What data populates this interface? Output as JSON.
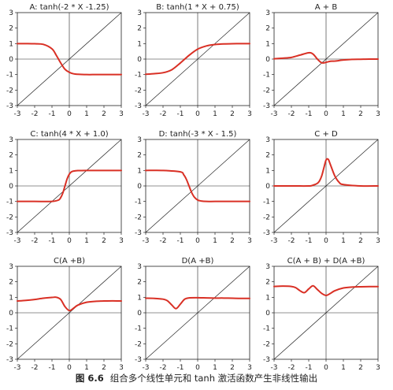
{
  "caption": {
    "number": "图 6.6",
    "text": "组合多个线性单元和 tanh 激活函数产生非线性输出"
  },
  "colors": {
    "curve": "#d93025",
    "line": "#222222"
  },
  "chart_data": [
    {
      "type": "line",
      "title": "A: tanh(-2 * X -1.25)",
      "xlim": [
        -3,
        3
      ],
      "ylim": [
        -3,
        3
      ],
      "xticks": [
        -3,
        -2,
        -1,
        0,
        1,
        2,
        3
      ],
      "yticks": [
        -3,
        -2,
        -1,
        0,
        1,
        2,
        3
      ],
      "reference_line": "y = x",
      "series": [
        {
          "x": [
            -3,
            -2.5,
            -2,
            -1.5,
            -1,
            -0.75,
            -0.5,
            -0.25,
            0,
            0.25,
            0.5,
            1,
            1.5,
            2,
            2.5,
            3
          ],
          "y": [
            1,
            1,
            0.99,
            0.95,
            0.66,
            0.24,
            -0.24,
            -0.66,
            -0.85,
            -0.95,
            -0.98,
            -1,
            -1,
            -1,
            -1,
            -1
          ]
        }
      ]
    },
    {
      "type": "line",
      "title": "B: tanh(1 * X + 0.75)",
      "xlim": [
        -3,
        3
      ],
      "ylim": [
        -3,
        3
      ],
      "xticks": [
        -3,
        -2,
        -1,
        0,
        1,
        2,
        3
      ],
      "yticks": [
        -3,
        -2,
        -1,
        0,
        1,
        2,
        3
      ],
      "reference_line": "y = x",
      "series": [
        {
          "x": [
            -3,
            -2.5,
            -2,
            -1.5,
            -1,
            -0.5,
            0,
            0.5,
            1,
            1.5,
            2,
            2.5,
            3
          ],
          "y": [
            -0.98,
            -0.94,
            -0.88,
            -0.69,
            -0.25,
            0.24,
            0.64,
            0.85,
            0.94,
            0.98,
            0.99,
            1,
            1
          ]
        }
      ]
    },
    {
      "type": "line",
      "title": "A + B",
      "xlim": [
        -3,
        3
      ],
      "ylim": [
        -3,
        3
      ],
      "xticks": [
        -3,
        -2,
        -1,
        0,
        1,
        2,
        3
      ],
      "yticks": [
        -3,
        -2,
        -1,
        0,
        1,
        2,
        3
      ],
      "reference_line": "y = x",
      "series": [
        {
          "x": [
            -3,
            -2.5,
            -2,
            -1.5,
            -1,
            -0.75,
            -0.5,
            -0.25,
            0,
            0.25,
            0.5,
            1,
            1.5,
            2,
            2.5,
            3
          ],
          "y": [
            0.02,
            0.06,
            0.11,
            0.26,
            0.41,
            0.32,
            0,
            -0.24,
            -0.21,
            -0.14,
            -0.13,
            -0.06,
            -0.02,
            -0.01,
            0,
            0
          ]
        }
      ]
    },
    {
      "type": "line",
      "title": "C: tanh(4 * X + 1.0)",
      "xlim": [
        -3,
        3
      ],
      "ylim": [
        -3,
        3
      ],
      "xticks": [
        -3,
        -2,
        -1,
        0,
        1,
        2,
        3
      ],
      "yticks": [
        -3,
        -2,
        -1,
        0,
        1,
        2,
        3
      ],
      "reference_line": "y = x",
      "series": [
        {
          "x": [
            -3,
            -2,
            -1,
            -0.625,
            -0.5,
            -0.375,
            -0.25,
            -0.125,
            0,
            0.125,
            0.25,
            0.5,
            1,
            2,
            3
          ],
          "y": [
            -1,
            -1,
            -1,
            -0.91,
            -0.76,
            -0.46,
            0,
            0.46,
            0.76,
            0.91,
            0.96,
            0.99,
            1,
            1,
            1
          ]
        }
      ]
    },
    {
      "type": "line",
      "title": "D: tanh(-3 * X - 1.5)",
      "xlim": [
        -3,
        3
      ],
      "ylim": [
        -3,
        3
      ],
      "xticks": [
        -3,
        -2,
        -1,
        0,
        1,
        2,
        3
      ],
      "yticks": [
        -3,
        -2,
        -1,
        0,
        1,
        2,
        3
      ],
      "reference_line": "y = x",
      "series": [
        {
          "x": [
            -3,
            -2,
            -1,
            -0.8,
            -0.65,
            -0.5,
            -0.35,
            -0.2,
            0,
            0.2,
            0.5,
            1,
            2,
            3
          ],
          "y": [
            1,
            1,
            0.91,
            0.71,
            0.42,
            0,
            -0.42,
            -0.71,
            -0.91,
            -0.97,
            -1,
            -1,
            -1,
            -1
          ]
        }
      ]
    },
    {
      "type": "line",
      "title": "C + D",
      "xlim": [
        -3,
        3
      ],
      "ylim": [
        -3,
        3
      ],
      "xticks": [
        -3,
        -2,
        -1,
        0,
        1,
        2,
        3
      ],
      "yticks": [
        -3,
        -2,
        -1,
        0,
        1,
        2,
        3
      ],
      "reference_line": "y = x",
      "series": [
        {
          "x": [
            -3,
            -2,
            -1,
            -0.75,
            -0.5,
            -0.375,
            -0.25,
            -0.125,
            0,
            0.125,
            0.25,
            0.5,
            0.75,
            1,
            2,
            3
          ],
          "y": [
            0,
            0,
            0,
            0.05,
            0.17,
            0.33,
            0.65,
            1.17,
            1.67,
            1.72,
            1.38,
            0.66,
            0.24,
            0.09,
            0,
            0
          ]
        }
      ]
    },
    {
      "type": "line",
      "title": "C(A +B)",
      "xlim": [
        -3,
        3
      ],
      "ylim": [
        -3,
        3
      ],
      "xticks": [
        -3,
        -2,
        -1,
        0,
        1,
        2,
        3
      ],
      "yticks": [
        -3,
        -2,
        -1,
        0,
        1,
        2,
        3
      ],
      "reference_line": "y = x",
      "series": [
        {
          "x": [
            -3,
            -2.5,
            -2,
            -1.5,
            -1,
            -0.75,
            -0.5,
            -0.25,
            0,
            0.25,
            0.5,
            1,
            1.5,
            2,
            2.5,
            3
          ],
          "y": [
            0.76,
            0.8,
            0.86,
            0.94,
            0.99,
            1.0,
            0.86,
            0.4,
            0.14,
            0.3,
            0.5,
            0.68,
            0.74,
            0.76,
            0.77,
            0.76
          ]
        }
      ]
    },
    {
      "type": "line",
      "title": "D(A +B)",
      "xlim": [
        -3,
        3
      ],
      "ylim": [
        -3,
        3
      ],
      "xticks": [
        -3,
        -2,
        -1,
        0,
        1,
        2,
        3
      ],
      "yticks": [
        -3,
        -2,
        -1,
        0,
        1,
        2,
        3
      ],
      "reference_line": "y = x",
      "series": [
        {
          "x": [
            -3,
            -2.5,
            -2,
            -1.75,
            -1.5,
            -1.25,
            -1,
            -0.75,
            -0.5,
            0,
            0.5,
            1,
            1.5,
            2,
            2.5,
            3
          ],
          "y": [
            0.94,
            0.93,
            0.88,
            0.78,
            0.51,
            0.27,
            0.56,
            0.88,
            0.96,
            0.97,
            0.96,
            0.95,
            0.95,
            0.94,
            0.93,
            0.93
          ]
        }
      ]
    },
    {
      "type": "line",
      "title": "C(A + B) + D(A +B)",
      "xlim": [
        -3,
        3
      ],
      "ylim": [
        -3,
        3
      ],
      "xticks": [
        -3,
        -2,
        -1,
        0,
        1,
        2,
        3
      ],
      "yticks": [
        -3,
        -2,
        -1,
        0,
        1,
        2,
        3
      ],
      "reference_line": "y = x",
      "series": [
        {
          "x": [
            -3,
            -2.5,
            -2,
            -1.75,
            -1.5,
            -1.25,
            -1,
            -0.75,
            -0.5,
            -0.25,
            0,
            0.25,
            0.5,
            1,
            1.5,
            2,
            2.5,
            3
          ],
          "y": [
            1.7,
            1.72,
            1.7,
            1.62,
            1.42,
            1.3,
            1.54,
            1.74,
            1.5,
            1.25,
            1.12,
            1.25,
            1.42,
            1.6,
            1.66,
            1.68,
            1.69,
            1.69
          ]
        }
      ]
    }
  ]
}
